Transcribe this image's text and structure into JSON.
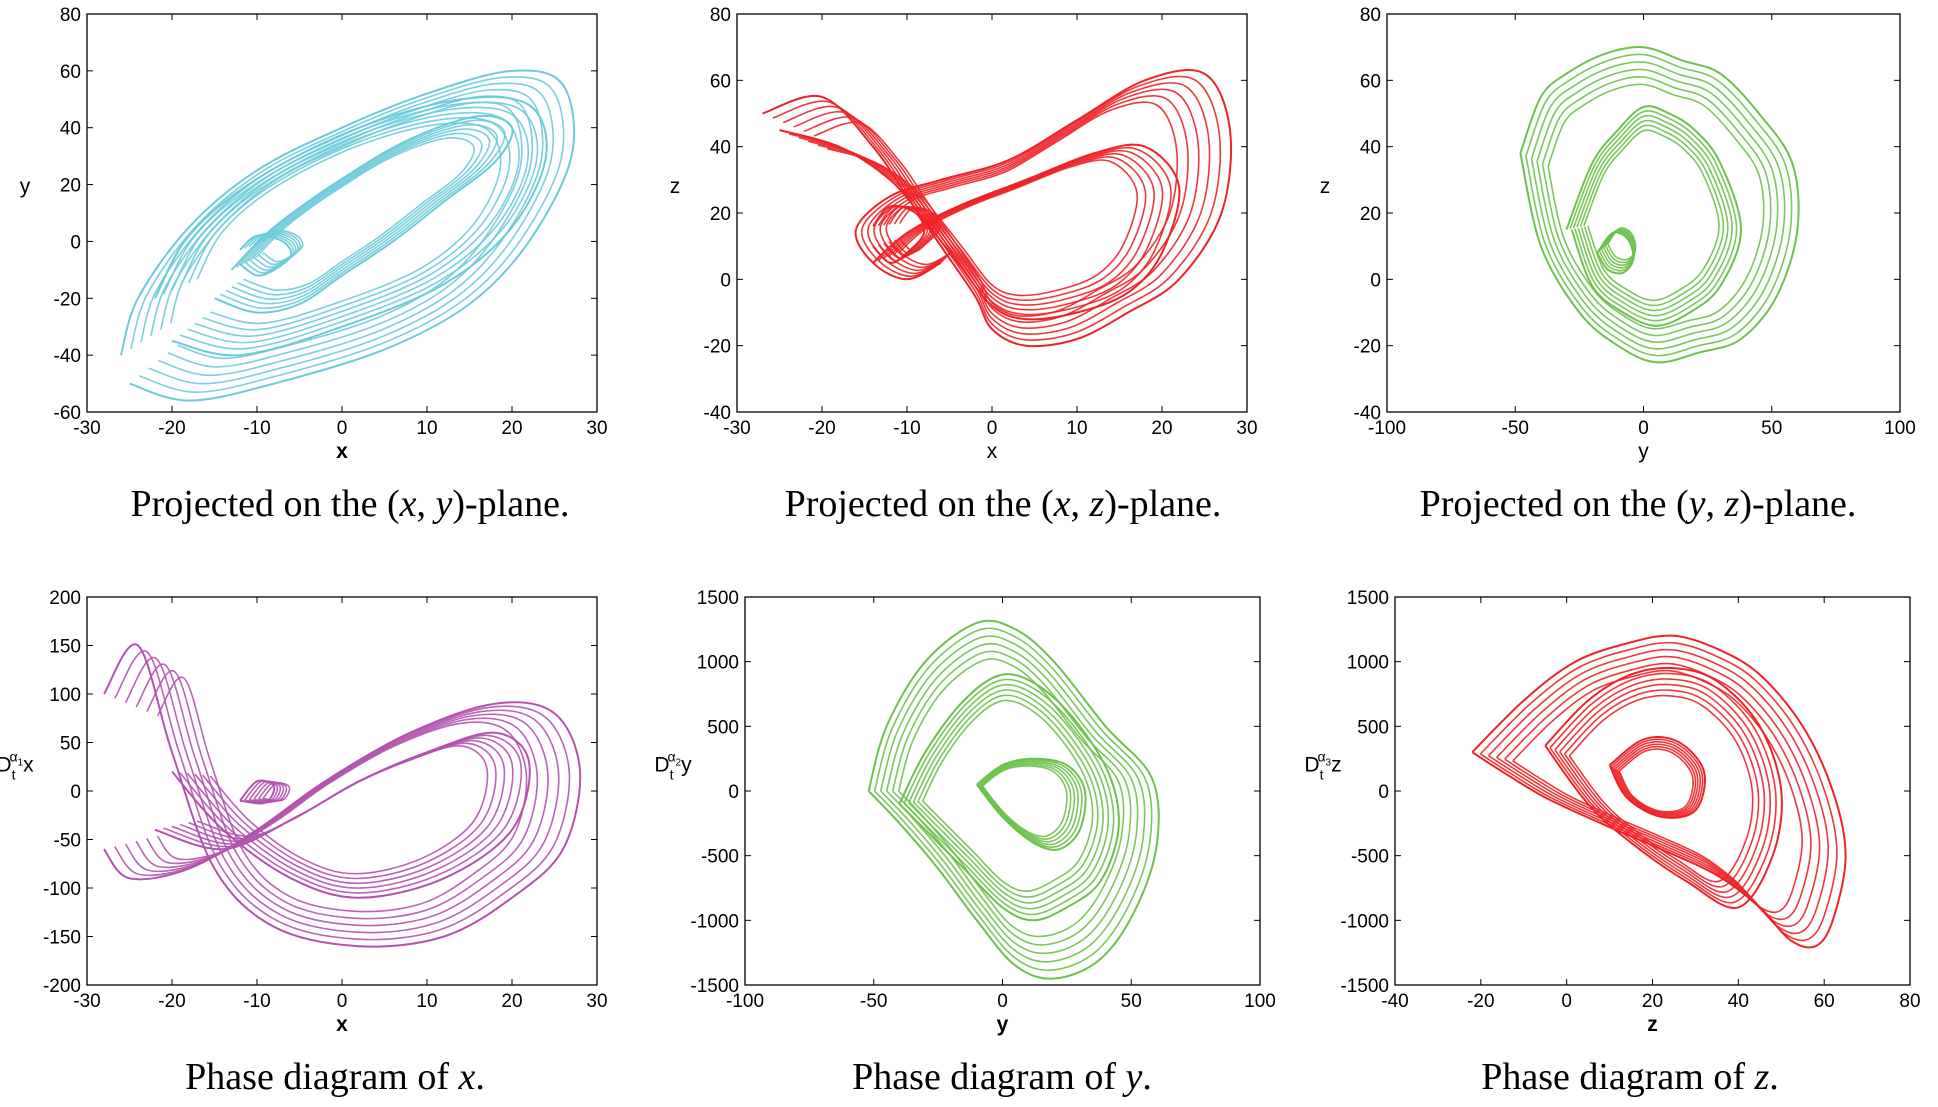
{
  "chart_data": [
    {
      "type": "line",
      "title": "",
      "xlabel": "x",
      "ylabel": "y",
      "xlim": [
        -30,
        30
      ],
      "ylim": [
        -60,
        80
      ],
      "xticks": [
        "-30",
        "-20",
        "-10",
        "0",
        "10",
        "20",
        "30"
      ],
      "yticks": [
        "-60",
        "-40",
        "-20",
        "0",
        "20",
        "40",
        "60",
        "80"
      ],
      "color": "#6CCBDA",
      "caption": "Projected on the (x, y)-plane.",
      "series": [
        {
          "x": [
            -25,
            -18,
            -8,
            5,
            15,
            22,
            27,
            26,
            20,
            10,
            0,
            -10,
            -18,
            -24,
            -26
          ],
          "y": [
            -50,
            -56,
            -50,
            -38,
            -22,
            0,
            30,
            55,
            60,
            52,
            40,
            25,
            5,
            -20,
            -40
          ]
        },
        {
          "x": [
            -20,
            -12,
            0,
            12,
            20,
            24,
            22,
            14,
            2,
            -10,
            -18,
            -22
          ],
          "y": [
            -35,
            -40,
            -30,
            -15,
            5,
            30,
            48,
            50,
            40,
            22,
            2,
            -20
          ]
        },
        {
          "x": [
            -15,
            -10,
            -5,
            0,
            6,
            12,
            18,
            20,
            16,
            8,
            0,
            -8,
            -13
          ],
          "y": [
            -20,
            -25,
            -22,
            -12,
            0,
            14,
            28,
            40,
            44,
            36,
            22,
            5,
            -10
          ]
        },
        {
          "x": [
            -12,
            -10,
            -8,
            -6,
            -7,
            -10,
            -12
          ],
          "y": [
            -8,
            -12,
            -10,
            -5,
            0,
            2,
            -3
          ]
        }
      ]
    },
    {
      "type": "line",
      "title": "",
      "xlabel": "x",
      "ylabel": "z",
      "xlim": [
        -30,
        30
      ],
      "ylim": [
        -40,
        80
      ],
      "xticks": [
        "-30",
        "-20",
        "-10",
        "0",
        "10",
        "20",
        "30"
      ],
      "yticks": [
        "-40",
        "-20",
        "0",
        "20",
        "40",
        "60",
        "80"
      ],
      "color": "#EE2227",
      "caption": "Projected on the (x, z)-plane.",
      "series": [
        {
          "x": [
            -27,
            -20,
            -14,
            -10,
            -6,
            -2,
            0,
            4,
            10,
            16,
            22,
            27,
            28,
            25,
            18,
            10,
            2,
            -6,
            -12,
            -16,
            -14,
            -10,
            -6
          ],
          "y": [
            50,
            55,
            40,
            25,
            10,
            -5,
            -15,
            -20,
            -18,
            -10,
            0,
            20,
            45,
            62,
            60,
            48,
            36,
            30,
            25,
            15,
            5,
            0,
            5
          ]
        },
        {
          "x": [
            -25,
            -18,
            -12,
            -8,
            -4,
            0,
            4,
            10,
            16,
            20,
            22,
            18,
            12,
            4,
            -4,
            -10,
            -14
          ],
          "y": [
            45,
            40,
            30,
            18,
            5,
            -8,
            -12,
            -10,
            -4,
            8,
            28,
            40,
            38,
            30,
            22,
            14,
            5
          ]
        },
        {
          "x": [
            -14,
            -12,
            -10,
            -8,
            -9,
            -12,
            -14
          ],
          "y": [
            10,
            5,
            8,
            14,
            20,
            22,
            16
          ]
        }
      ]
    },
    {
      "type": "line",
      "title": "",
      "xlabel": "y",
      "ylabel": "z",
      "xlim": [
        -100,
        100
      ],
      "ylim": [
        -40,
        80
      ],
      "xticks": [
        "-100",
        "-50",
        "0",
        "50",
        "100"
      ],
      "yticks": [
        "-40",
        "-20",
        "0",
        "20",
        "40",
        "60",
        "80"
      ],
      "color": "#6CC24A",
      "caption": "Projected on the (y, z)-plane.",
      "series": [
        {
          "x": [
            -48,
            -40,
            -30,
            -15,
            0,
            15,
            30,
            45,
            58,
            60,
            52,
            38,
            22,
            5,
            -10,
            -25,
            -40,
            -48
          ],
          "y": [
            38,
            55,
            62,
            68,
            70,
            66,
            62,
            50,
            35,
            15,
            -5,
            -18,
            -22,
            -25,
            -20,
            -10,
            10,
            38
          ]
        },
        {
          "x": [
            -30,
            -20,
            -10,
            0,
            10,
            20,
            30,
            38,
            30,
            18,
            5,
            -8,
            -20,
            -28
          ],
          "y": [
            15,
            35,
            45,
            52,
            50,
            45,
            35,
            15,
            -2,
            -10,
            -14,
            -10,
            -2,
            15
          ]
        },
        {
          "x": [
            -18,
            -12,
            -6,
            -4,
            -8,
            -14,
            -18
          ],
          "y": [
            8,
            14,
            12,
            6,
            2,
            3,
            8
          ]
        }
      ]
    },
    {
      "type": "line",
      "title": "",
      "xlabel": "x",
      "ylabel": "D_t^{α1} x",
      "xlim": [
        -30,
        30
      ],
      "ylim": [
        -200,
        200
      ],
      "xticks": [
        "-30",
        "-20",
        "-10",
        "0",
        "10",
        "20",
        "30"
      ],
      "yticks": [
        "-200",
        "-150",
        "-100",
        "-50",
        "0",
        "50",
        "100",
        "150",
        "200"
      ],
      "color": "#B452B0",
      "caption": "Phase diagram of x.",
      "series": [
        {
          "x": [
            -28,
            -25,
            -18,
            -10,
            -2,
            8,
            18,
            25,
            28,
            26,
            20,
            12,
            2,
            -8,
            -15,
            -20,
            -24,
            -28
          ],
          "y": [
            -60,
            -90,
            -80,
            -40,
            10,
            60,
            90,
            80,
            20,
            -60,
            -110,
            -150,
            -160,
            -140,
            -80,
            40,
            150,
            100
          ]
        },
        {
          "x": [
            -22,
            -14,
            -6,
            2,
            10,
            18,
            22,
            20,
            12,
            2,
            -6,
            -14,
            -20
          ],
          "y": [
            -40,
            -60,
            -30,
            10,
            40,
            60,
            30,
            -40,
            -90,
            -110,
            -90,
            -40,
            20
          ]
        },
        {
          "x": [
            -12,
            -10,
            -8,
            -9,
            -12
          ],
          "y": [
            -10,
            10,
            5,
            -12,
            -10
          ]
        }
      ]
    },
    {
      "type": "line",
      "title": "",
      "xlabel": "y",
      "ylabel": "D_t^{α2} y",
      "xlim": [
        -100,
        100
      ],
      "ylim": [
        -1500,
        1500
      ],
      "xticks": [
        "-100",
        "-50",
        "0",
        "50",
        "100"
      ],
      "yticks": [
        "-1500",
        "-1000",
        "-500",
        "0",
        "500",
        "1000",
        "1500"
      ],
      "color": "#6CC24A",
      "caption": "Phase diagram of y.",
      "series": [
        {
          "x": [
            -52,
            -45,
            -30,
            -10,
            5,
            20,
            40,
            58,
            60,
            52,
            38,
            20,
            5,
            -10,
            -25,
            -40,
            -52
          ],
          "y": [
            0,
            500,
            1000,
            1300,
            1250,
            1000,
            500,
            100,
            -400,
            -900,
            -1300,
            -1450,
            -1350,
            -1000,
            -600,
            -250,
            0
          ]
        },
        {
          "x": [
            -40,
            -30,
            -15,
            0,
            15,
            30,
            42,
            45,
            38,
            25,
            12,
            0,
            -15,
            -30,
            -40
          ],
          "y": [
            -100,
            300,
            700,
            900,
            800,
            500,
            100,
            -300,
            -700,
            -900,
            -1000,
            -900,
            -600,
            -300,
            -100
          ]
        },
        {
          "x": [
            -10,
            0,
            12,
            22,
            30,
            32,
            25,
            12,
            0,
            -10
          ],
          "y": [
            50,
            -200,
            -400,
            -450,
            -300,
            0,
            200,
            250,
            200,
            50
          ]
        }
      ]
    },
    {
      "type": "line",
      "title": "",
      "xlabel": "z",
      "ylabel": "D_t^{α3} z",
      "xlim": [
        -40,
        80
      ],
      "ylim": [
        -1500,
        1500
      ],
      "xticks": [
        "-40",
        "-20",
        "0",
        "20",
        "40",
        "60",
        "80"
      ],
      "yticks": [
        "-1500",
        "-1000",
        "-500",
        "0",
        "500",
        "1000",
        "1500"
      ],
      "color": "#EE2227",
      "caption": "Phase diagram of z.",
      "series": [
        {
          "x": [
            -22,
            -10,
            2,
            15,
            25,
            35,
            45,
            55,
            62,
            65,
            62,
            58,
            52,
            45,
            35,
            22,
            8,
            -5,
            -15,
            -22
          ],
          "y": [
            300,
            700,
            1000,
            1150,
            1200,
            1100,
            900,
            500,
            0,
            -500,
            -1000,
            -1200,
            -1150,
            -900,
            -650,
            -450,
            -250,
            -50,
            150,
            300
          ]
        },
        {
          "x": [
            -5,
            5,
            15,
            25,
            35,
            45,
            50,
            48,
            40,
            28,
            15,
            5,
            -5
          ],
          "y": [
            350,
            700,
            900,
            950,
            850,
            500,
            0,
            -500,
            -900,
            -700,
            -400,
            -100,
            350
          ]
        },
        {
          "x": [
            10,
            18,
            26,
            32,
            30,
            22,
            14,
            10
          ],
          "y": [
            200,
            400,
            380,
            150,
            -150,
            -200,
            -50,
            200
          ]
        }
      ]
    }
  ]
}
